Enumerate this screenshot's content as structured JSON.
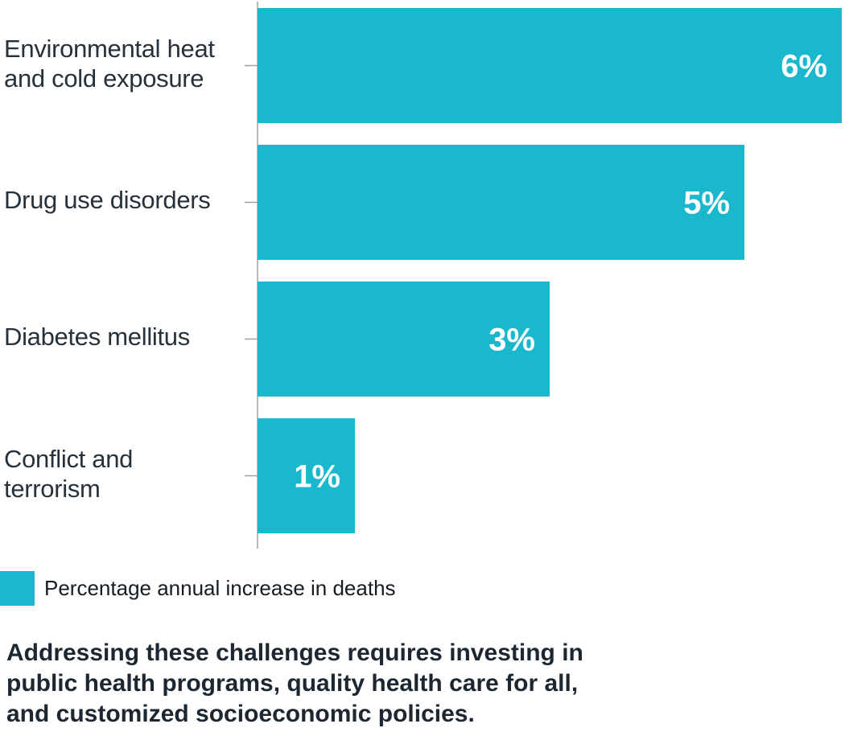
{
  "colors": {
    "bar": "#19b8cd",
    "axis": "#a0a0a0",
    "bar_label": "#ffffff"
  },
  "chart_data": {
    "type": "bar",
    "orientation": "horizontal",
    "categories": [
      "Environmental heat and cold exposure",
      "Drug use disorders",
      "Diabetes mellitus",
      "Conflict and terrorism"
    ],
    "category_labels": [
      [
        "Environmental heat",
        "and cold exposure"
      ],
      [
        "Drug use disorders"
      ],
      [
        "Diabetes mellitus"
      ],
      [
        "Conflict and",
        "terrorism"
      ]
    ],
    "series": [
      {
        "name": "Percentage annual increase in deaths",
        "values": [
          6,
          5,
          3,
          1
        ]
      }
    ],
    "data_labels": [
      "6%",
      "5%",
      "3%",
      "1%"
    ],
    "xlim": [
      0,
      6
    ],
    "grid": false,
    "legend_position": "bottom-left"
  },
  "legend": {
    "label": "Percentage annual increase in deaths"
  },
  "footnote": {
    "lines": [
      "Addressing these challenges requires investing in",
      "public health programs, quality health care for all,",
      "and customized socioeconomic policies."
    ]
  }
}
